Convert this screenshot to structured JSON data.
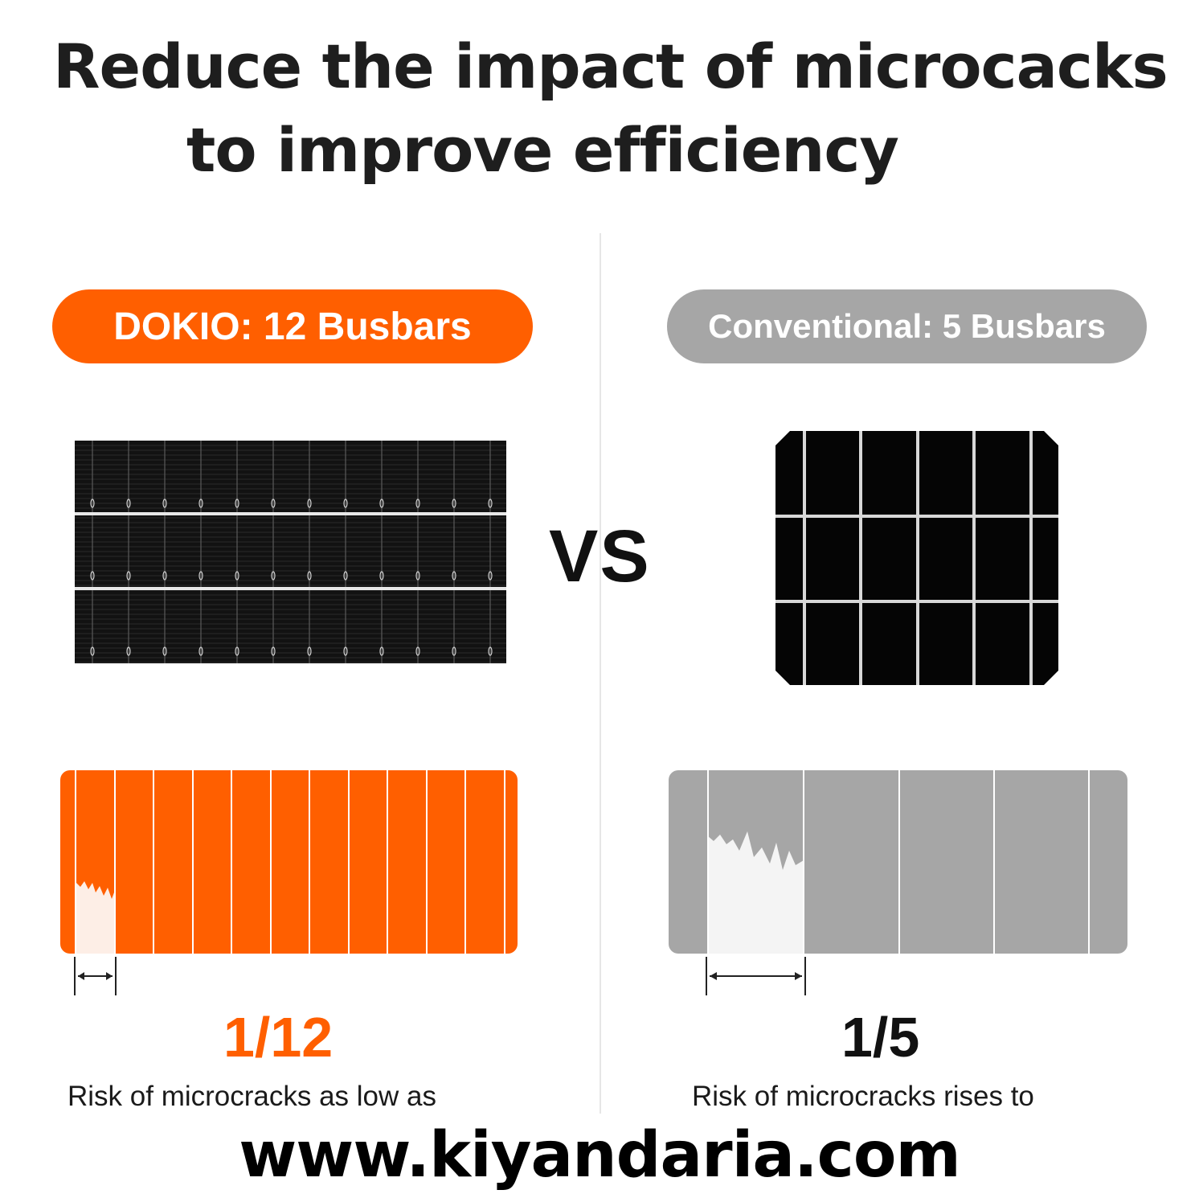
{
  "title": {
    "line1": "Reduce the impact of microcacks",
    "line2": "to improve efficiency"
  },
  "left": {
    "label": "DOKIO: 12 Busbars",
    "ratio": "1/12",
    "caption": "Risk of microcracks as low as",
    "color": "#ff5f00",
    "risk_fraction": 0.0833
  },
  "right": {
    "label": "Conventional: 5 Busbars",
    "ratio": "1/5",
    "caption": "Risk of microcracks rises to",
    "color": "#a6a6a6",
    "risk_fraction": 0.2
  },
  "vs_label": "VS",
  "website": "www.kiyandaria.com"
}
